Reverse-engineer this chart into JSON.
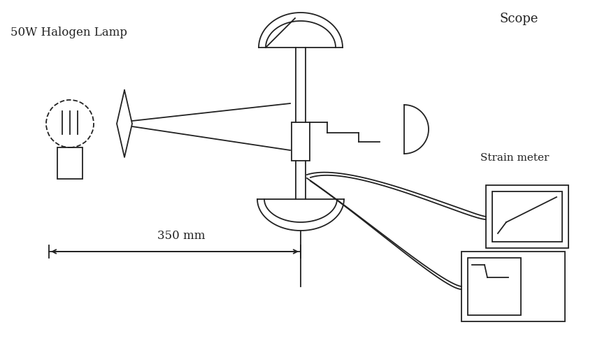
{
  "bg_color": "#ffffff",
  "line_color": "#222222",
  "lamp_label": "50W Halogen Lamp",
  "distance_label": "350 mm",
  "strain_label": "Strain meter",
  "scope_label": "Scope",
  "figw": 8.61,
  "figh": 4.88,
  "dpi": 100
}
